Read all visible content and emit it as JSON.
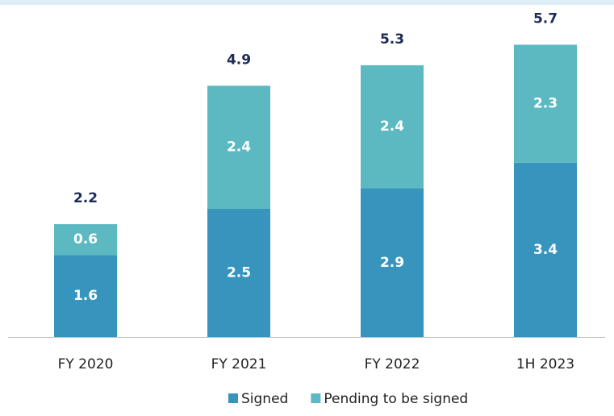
{
  "chart_data": {
    "type": "stacked_bar",
    "categories": [
      "FY 2020",
      "FY 2021",
      "FY 2022",
      "1H 2023"
    ],
    "series": [
      {
        "name": "Signed",
        "color": "#3795bd",
        "values": [
          1.6,
          2.5,
          2.9,
          3.4
        ]
      },
      {
        "name": "Pending to be signed",
        "color": "#5cb9c2",
        "values": [
          0.6,
          2.4,
          2.4,
          2.3
        ]
      }
    ],
    "totals": [
      2.2,
      4.9,
      5.3,
      5.7
    ]
  }
}
